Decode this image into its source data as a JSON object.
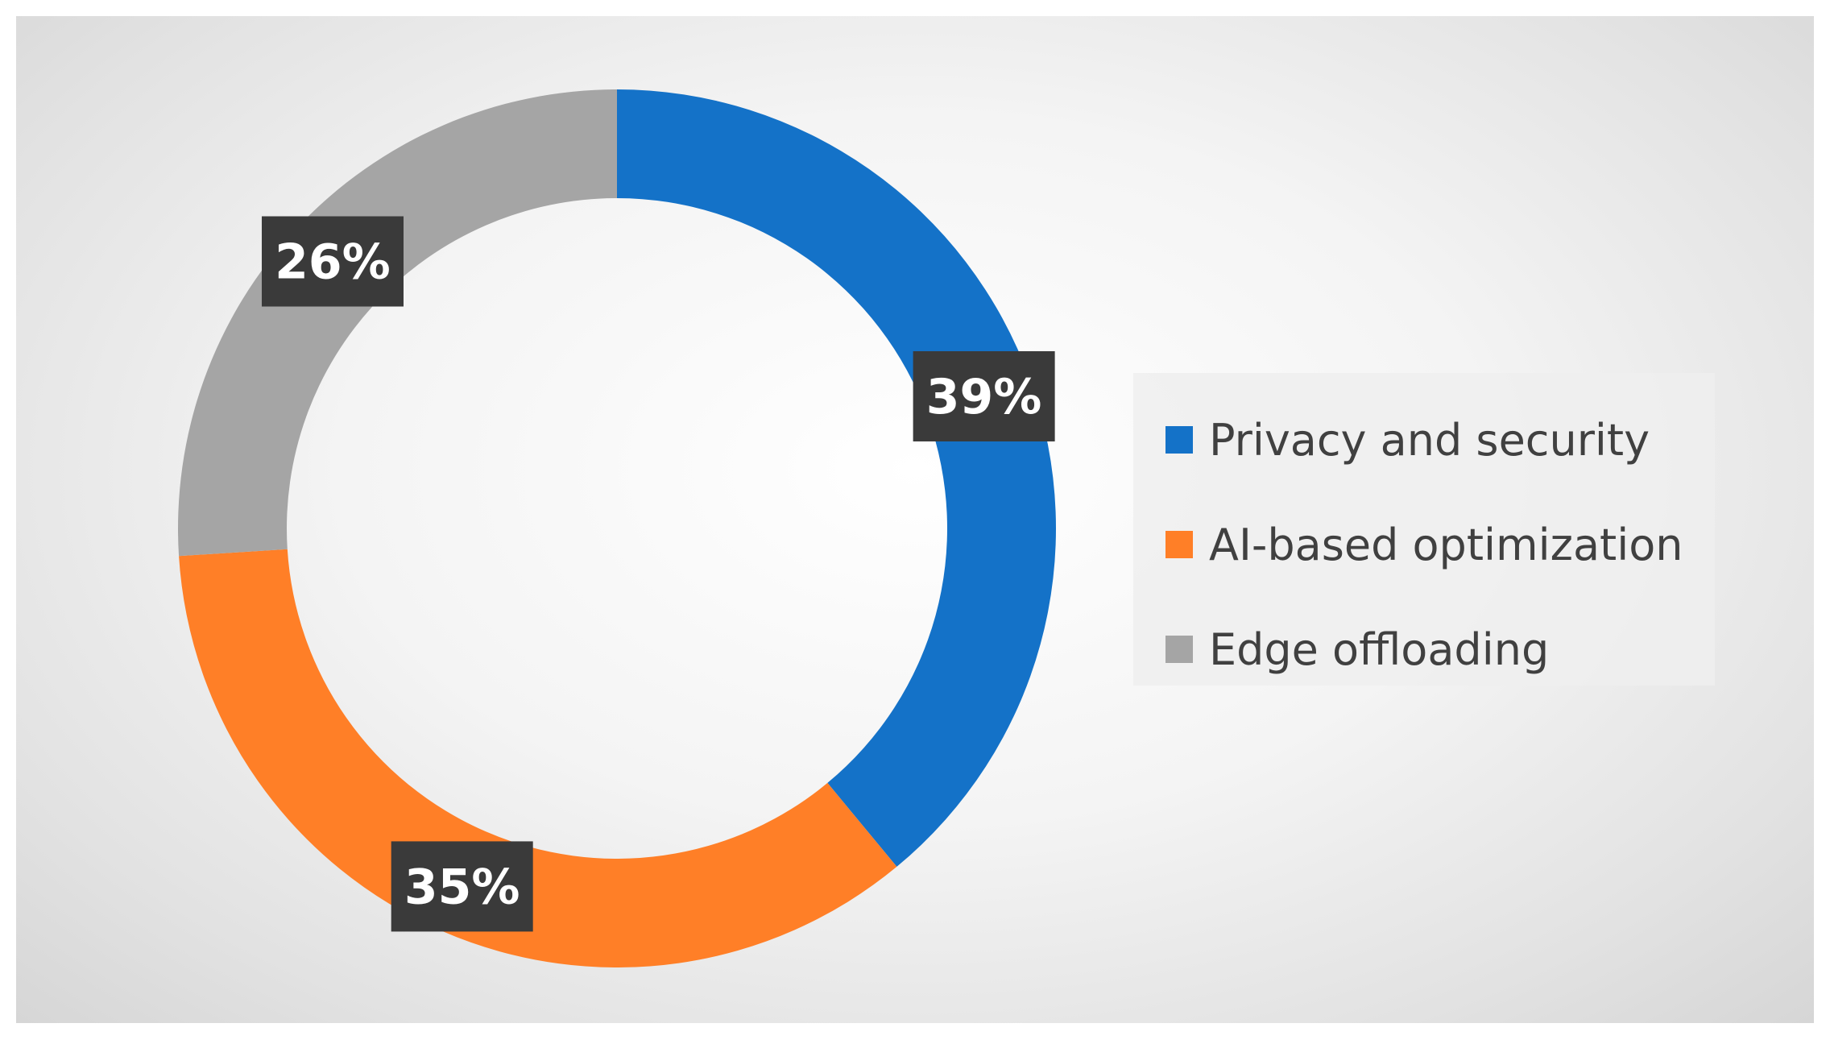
{
  "chart_data": {
    "type": "pie",
    "variant": "donut",
    "categories": [
      "Privacy and security",
      "AI-based optimization",
      "Edge offloading"
    ],
    "values": [
      39,
      35,
      26
    ],
    "labels": [
      "39%",
      "35%",
      "26%"
    ],
    "colors": [
      "#1472C8",
      "#FF7F27",
      "#A5A5A5"
    ],
    "legend_position": "right",
    "start_angle": "top",
    "direction": "clockwise"
  }
}
